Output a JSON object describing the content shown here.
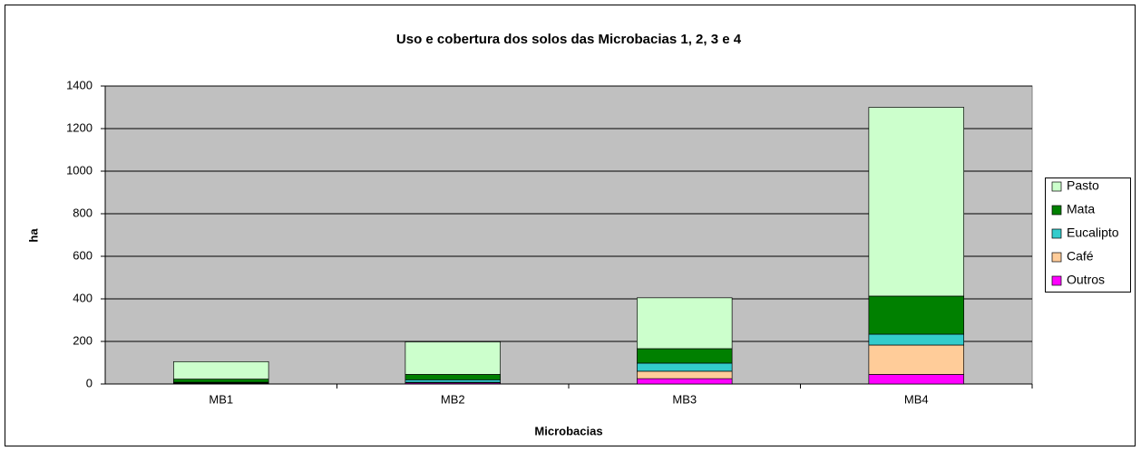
{
  "chart_data": {
    "type": "stacked_bar",
    "title": "Uso e cobertura dos solos das Microbacias 1, 2, 3 e 4",
    "xlabel": "Microbacias",
    "ylabel": "ha",
    "categories": [
      "MB1",
      "MB2",
      "MB3",
      "MB4"
    ],
    "series": [
      {
        "name": "Outros",
        "color": "#ff00ff",
        "values": [
          3,
          5,
          25,
          45
        ]
      },
      {
        "name": "Café",
        "color": "#ffcc99",
        "values": [
          2,
          3,
          35,
          138
        ]
      },
      {
        "name": "Eucalipto",
        "color": "#33cccc",
        "values": [
          3,
          12,
          38,
          51
        ]
      },
      {
        "name": "Mata",
        "color": "#008000",
        "values": [
          15,
          25,
          68,
          179
        ]
      },
      {
        "name": "Pasto",
        "color": "#ccffcc",
        "values": [
          82,
          153,
          239,
          887
        ]
      }
    ],
    "ylim": [
      0,
      1400
    ],
    "yticks": [
      0,
      200,
      400,
      600,
      800,
      1000,
      1200,
      1400
    ],
    "grid": true,
    "legend": "right"
  }
}
